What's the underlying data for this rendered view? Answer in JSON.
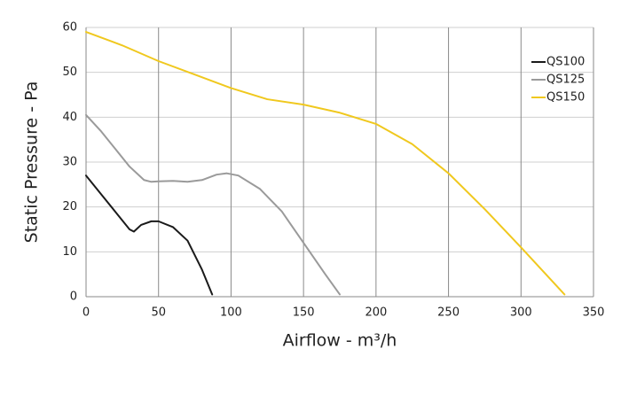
{
  "chart_data": {
    "type": "line",
    "xlabel": "Airflow - m³/h",
    "ylabel": "Static Pressure - Pa",
    "xlim": [
      0,
      350
    ],
    "xticks": [
      0,
      50,
      100,
      150,
      200,
      250,
      300,
      350
    ],
    "ylim": [
      0,
      60
    ],
    "yticks": [
      0,
      10,
      20,
      30,
      40,
      50,
      60
    ],
    "grid": true,
    "legend": "upper right",
    "series": [
      {
        "name": "QS100",
        "color": "#1a1a1a",
        "x": [
          0,
          10,
          20,
          30,
          33,
          38,
          45,
          50,
          60,
          70,
          80,
          87
        ],
        "values": [
          27,
          23,
          19,
          15,
          14.5,
          16,
          16.8,
          16.8,
          15.5,
          12.5,
          6,
          0.5
        ]
      },
      {
        "name": "QS125",
        "color": "#9a9a9a",
        "x": [
          0,
          10,
          20,
          30,
          40,
          45,
          50,
          60,
          70,
          80,
          90,
          97,
          105,
          120,
          135,
          150,
          165,
          175
        ],
        "values": [
          40.5,
          37,
          33,
          29,
          26,
          25.6,
          25.7,
          25.8,
          25.6,
          26,
          27.2,
          27.5,
          27,
          24,
          19,
          12,
          5,
          0.5
        ]
      },
      {
        "name": "QS150",
        "color": "#f0c81e",
        "x": [
          0,
          25,
          50,
          75,
          100,
          125,
          150,
          175,
          200,
          225,
          250,
          275,
          300,
          330
        ],
        "values": [
          59,
          56,
          52.5,
          49.5,
          46.5,
          44,
          42.8,
          41,
          38.5,
          34,
          27.5,
          19.5,
          11,
          0.5
        ]
      }
    ]
  }
}
